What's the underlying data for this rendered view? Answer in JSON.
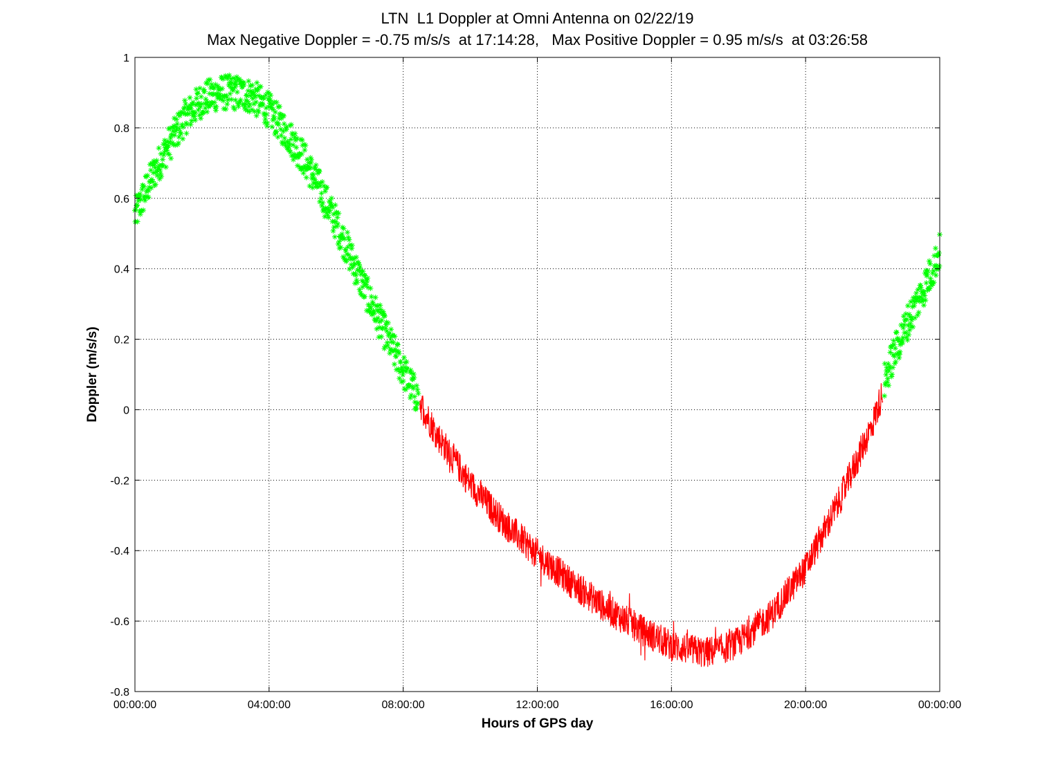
{
  "chart_data": {
    "type": "scatter",
    "title": "LTN  L1 Doppler at Omni Antenna on 02/22/19",
    "subtitle": "Max Negative Doppler = -0.75 m/s/s  at 17:14:28,   Max Positive Doppler = 0.95 m/s/s  at 03:26:58",
    "xlabel": "Hours of GPS day",
    "ylabel": "Doppler (m/s/s)",
    "xlim": [
      0,
      24
    ],
    "ylim": [
      -0.8,
      1
    ],
    "x_unit": "hours",
    "x_ticks": [
      0,
      4,
      8,
      12,
      16,
      20,
      24
    ],
    "x_tick_labels": [
      "00:00:00",
      "04:00:00",
      "08:00:00",
      "12:00:00",
      "16:00:00",
      "20:00:00",
      "00:00:00"
    ],
    "y_ticks": [
      -0.8,
      -0.6,
      -0.4,
      -0.2,
      0,
      0.2,
      0.4,
      0.6,
      0.8,
      1
    ],
    "y_tick_labels": [
      "-0.8",
      "-0.6",
      "-0.4",
      "-0.2",
      "0",
      "0.2",
      "0.4",
      "0.6",
      "0.8",
      "1"
    ],
    "grid": true,
    "grid_style": "dotted",
    "series": [
      {
        "color": "#00ff00",
        "marker": "asterisk",
        "x": [
          0,
          0.5,
          1,
          1.5,
          2,
          2.5,
          3,
          3.5,
          4,
          4.5,
          5,
          5.5,
          6,
          6.5,
          7,
          7.5,
          8,
          8.45
        ],
        "y": [
          0.55,
          0.66,
          0.75,
          0.83,
          0.88,
          0.9,
          0.9,
          0.89,
          0.85,
          0.79,
          0.72,
          0.63,
          0.53,
          0.42,
          0.31,
          0.21,
          0.11,
          0.03
        ]
      },
      {
        "color": "#ff0000",
        "marker": "line",
        "x": [
          8.5,
          9,
          10,
          11,
          12,
          13,
          14,
          15,
          16,
          16.5,
          17,
          17.5,
          18,
          19,
          20,
          21,
          22,
          22.3
        ],
        "y": [
          0.02,
          -0.07,
          -0.21,
          -0.32,
          -0.41,
          -0.49,
          -0.56,
          -0.62,
          -0.67,
          -0.68,
          -0.69,
          -0.68,
          -0.66,
          -0.58,
          -0.45,
          -0.26,
          -0.04,
          0.05
        ]
      },
      {
        "color": "#00ff00",
        "marker": "asterisk",
        "x": [
          22.35,
          22.6,
          23,
          23.4,
          23.8,
          24
        ],
        "y": [
          0.08,
          0.15,
          0.24,
          0.32,
          0.4,
          0.45
        ]
      }
    ]
  }
}
